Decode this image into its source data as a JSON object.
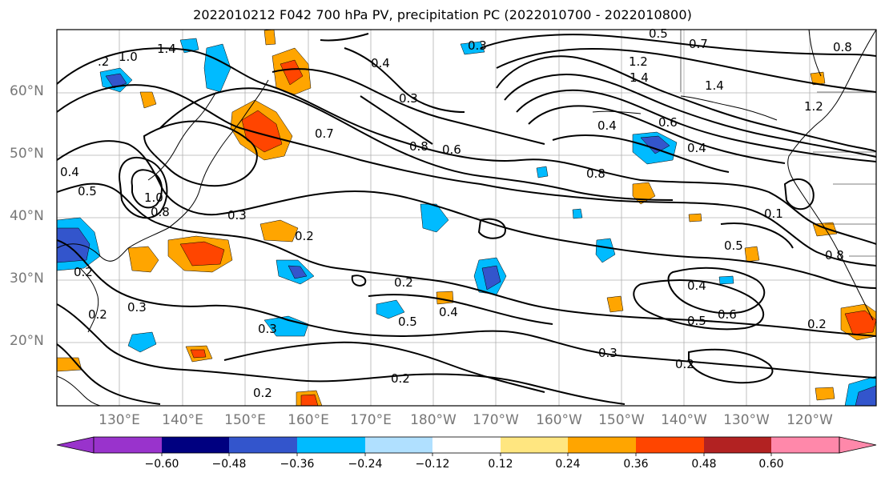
{
  "title": "2022010212 F042 700 hPa PV, precipitation PC (2022010700 - 2022010800)",
  "lat_labels": [
    "60°N",
    "50°N",
    "40°N",
    "30°N",
    "20°N"
  ],
  "lon_labels": [
    "130°E",
    "140°E",
    "150°E",
    "160°E",
    "170°E",
    "180°W",
    "170°W",
    "160°W",
    "150°W",
    "140°W",
    "130°W",
    "120°W"
  ],
  "colorbar": {
    "ticks": [
      "−0.60",
      "−0.48",
      "−0.36",
      "−0.24",
      "−0.12",
      "0.12",
      "0.24",
      "0.36",
      "0.48",
      "0.60"
    ],
    "colors": [
      "#9933cc",
      "#000080",
      "#3355cc",
      "#00bbff",
      "#b0e0ff",
      "#ffffff",
      "#ffe680",
      "#ffa500",
      "#ff4500",
      "#b22222",
      "#ff88aa"
    ]
  },
  "contour_labels": [
    "1.4",
    "1.0",
    ".2",
    "0.4",
    "0.3",
    "0.3",
    "0.5",
    "0.7",
    "1.2",
    "1.4",
    "1.4",
    "0.8",
    "0.4",
    "0.6",
    "0.4",
    "0.7",
    "0.8",
    "0.6",
    "0.8",
    "0.4",
    "0.5",
    "1.0",
    "0.8",
    "0.3",
    "0.2",
    "0.2",
    "0.2",
    "0.3",
    "0.2",
    "0.5",
    "0.4",
    "0.5",
    "0.4",
    "0.5",
    "0.6",
    "0.2",
    "0.3",
    "0.2",
    "0.3",
    "0.2",
    "0.2",
    "0.1",
    "1.2",
    "0.8"
  ]
}
